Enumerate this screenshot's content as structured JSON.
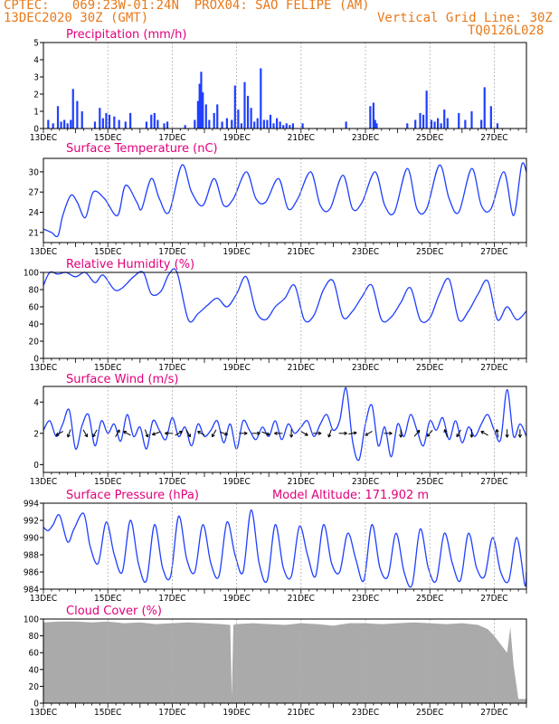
{
  "header": {
    "source": "CPTEC:",
    "coords": "069:23W-01:24N",
    "location": "PROX04: SAO FELIPE (AM)",
    "run": "13DEC2020 30Z (GMT)",
    "grid_note": "Vertical Grid Line: 30Z",
    "code": "TQ0126L028"
  },
  "colors": {
    "series": "#1f3fff",
    "title": "#e0007a",
    "header": "#e8791a",
    "cloud": "#aaaaaa",
    "vline": "#b0b0b0"
  },
  "chart_data": [
    {
      "id": "precip",
      "type": "bar",
      "title": "Precipitation (mm/h)",
      "ylim": [
        0,
        5
      ],
      "yticks": [
        0,
        1,
        2,
        3,
        4,
        5
      ],
      "xticks": [
        "13DEC",
        "15DEC",
        "17DEC",
        "19DEC",
        "21DEC",
        "23DEC",
        "25DEC",
        "27DEC"
      ],
      "x_unit": "days since 13DEC 00Z",
      "xlim": [
        0,
        15
      ],
      "x": [
        0.15,
        0.3,
        0.45,
        0.55,
        0.65,
        0.75,
        0.85,
        0.92,
        1.05,
        1.2,
        1.6,
        1.75,
        1.85,
        1.95,
        2.05,
        2.2,
        2.35,
        2.55,
        2.7,
        3.2,
        3.35,
        3.45,
        3.55,
        3.75,
        3.85,
        4.4,
        4.7,
        4.8,
        4.85,
        4.9,
        4.95,
        5.05,
        5.15,
        5.3,
        5.4,
        5.55,
        5.7,
        5.85,
        5.95,
        6.05,
        6.15,
        6.25,
        6.35,
        6.45,
        6.55,
        6.65,
        6.75,
        6.85,
        6.95,
        7.05,
        7.15,
        7.25,
        7.35,
        7.45,
        7.55,
        7.65,
        7.75,
        8.05,
        9.4,
        10.15,
        10.25,
        10.3,
        10.35,
        11.3,
        11.55,
        11.7,
        11.8,
        11.9,
        12.05,
        12.15,
        12.25,
        12.35,
        12.45,
        12.55,
        12.9,
        13.1,
        13.3,
        13.6,
        13.7,
        13.9,
        14.1
      ],
      "values": [
        0.5,
        0.3,
        1.3,
        0.4,
        0.5,
        0.3,
        0.5,
        2.3,
        1.6,
        1.0,
        0.4,
        1.2,
        0.6,
        0.9,
        0.8,
        0.7,
        0.5,
        0.4,
        0.9,
        0.4,
        0.8,
        0.9,
        0.5,
        0.3,
        0.4,
        0.2,
        0.5,
        1.6,
        2.6,
        3.3,
        2.1,
        1.4,
        0.5,
        0.9,
        1.4,
        0.4,
        0.6,
        0.5,
        2.5,
        1.1,
        0.3,
        2.7,
        1.9,
        1.2,
        0.4,
        0.6,
        3.5,
        0.5,
        0.5,
        0.8,
        0.3,
        0.6,
        0.4,
        0.2,
        0.3,
        0.2,
        0.3,
        0.3,
        0.4,
        1.3,
        1.5,
        0.5,
        0.3,
        0.3,
        0.5,
        0.9,
        0.8,
        2.2,
        0.5,
        0.4,
        0.6,
        0.3,
        1.1,
        0.6,
        0.9,
        0.5,
        1.0,
        0.5,
        2.4,
        1.3,
        0.3
      ]
    },
    {
      "id": "temp",
      "type": "line",
      "title": "Surface Temperature (nC)",
      "ylim": [
        19.5,
        32
      ],
      "yticks": [
        21,
        24,
        27,
        30
      ],
      "xticks": [
        "13DEC",
        "15DEC",
        "17DEC",
        "19DEC",
        "21DEC",
        "23DEC",
        "25DEC",
        "27DEC"
      ],
      "x_unit": "days since 13DEC 00Z",
      "xlim": [
        0,
        15
      ],
      "x": [
        0,
        0.25,
        0.45,
        0.6,
        0.85,
        1.05,
        1.3,
        1.55,
        1.9,
        2.3,
        2.55,
        2.9,
        3.05,
        3.35,
        3.6,
        3.9,
        4.3,
        4.6,
        4.95,
        5.3,
        5.6,
        5.9,
        6.3,
        6.6,
        6.9,
        7.3,
        7.6,
        7.9,
        8.3,
        8.6,
        8.9,
        9.3,
        9.6,
        9.9,
        10.3,
        10.6,
        10.9,
        11.3,
        11.6,
        11.9,
        12.3,
        12.6,
        12.9,
        13.3,
        13.6,
        13.9,
        14.3,
        14.6,
        14.85,
        15
      ],
      "values": [
        21.5,
        21.0,
        20.5,
        23.5,
        26.5,
        25.5,
        23.2,
        27.0,
        26.0,
        23.5,
        28.0,
        25.5,
        24.5,
        29.0,
        26.0,
        24.0,
        31.0,
        27.0,
        25.0,
        29.0,
        25.0,
        26.0,
        30.0,
        26.0,
        25.5,
        29.0,
        24.5,
        26.0,
        30.0,
        25.0,
        24.5,
        29.5,
        24.5,
        25.5,
        30.0,
        25.0,
        24.0,
        30.5,
        24.5,
        24.5,
        31.0,
        26.0,
        24.0,
        30.5,
        25.0,
        24.5,
        30.0,
        23.5,
        31.0,
        30.0
      ]
    },
    {
      "id": "rh",
      "type": "line",
      "title": "Relative Humidity (%)",
      "ylim": [
        0,
        100
      ],
      "yticks": [
        0,
        20,
        40,
        60,
        80,
        100
      ],
      "xticks": [
        "13DEC",
        "15DEC",
        "17DEC",
        "19DEC",
        "21DEC",
        "23DEC",
        "25DEC",
        "27DEC"
      ],
      "x_unit": "days since 13DEC 00Z",
      "xlim": [
        0,
        15
      ],
      "x": [
        0,
        0.2,
        0.45,
        0.7,
        1.0,
        1.3,
        1.6,
        1.85,
        2.2,
        2.45,
        2.8,
        3.1,
        3.35,
        3.65,
        3.9,
        4.15,
        4.5,
        4.8,
        5.1,
        5.4,
        5.7,
        6.0,
        6.3,
        6.6,
        6.9,
        7.2,
        7.5,
        7.8,
        8.1,
        8.4,
        8.7,
        9.0,
        9.3,
        9.6,
        9.9,
        10.2,
        10.5,
        10.8,
        11.1,
        11.4,
        11.7,
        12.0,
        12.3,
        12.6,
        12.9,
        13.2,
        13.5,
        13.8,
        14.1,
        14.4,
        14.7,
        15
      ],
      "values": [
        85,
        100,
        98,
        100,
        95,
        100,
        88,
        97,
        80,
        82,
        95,
        100,
        75,
        78,
        98,
        100,
        45,
        52,
        62,
        70,
        60,
        75,
        95,
        55,
        45,
        60,
        70,
        85,
        45,
        50,
        80,
        90,
        48,
        55,
        72,
        85,
        45,
        48,
        65,
        82,
        45,
        47,
        75,
        92,
        45,
        55,
        75,
        90,
        45,
        60,
        45,
        55
      ]
    },
    {
      "id": "wind",
      "type": "line",
      "title": "Surface Wind (m/s)",
      "ylim": [
        -0.5,
        5
      ],
      "yticks": [
        0,
        2,
        4
      ],
      "xticks": [
        "13DEC",
        "15DEC",
        "17DEC",
        "19DEC",
        "21DEC",
        "23DEC",
        "25DEC",
        "27DEC"
      ],
      "x_unit": "days since 13DEC 00Z",
      "xlim": [
        0,
        15
      ],
      "x": [
        0,
        0.2,
        0.4,
        0.6,
        0.8,
        1.0,
        1.2,
        1.4,
        1.6,
        1.8,
        2.0,
        2.2,
        2.4,
        2.6,
        2.8,
        3.0,
        3.2,
        3.4,
        3.6,
        3.8,
        4.0,
        4.2,
        4.4,
        4.6,
        4.8,
        5.0,
        5.2,
        5.4,
        5.6,
        5.8,
        6.0,
        6.2,
        6.4,
        6.6,
        6.8,
        7.0,
        7.2,
        7.4,
        7.6,
        7.8,
        8.0,
        8.2,
        8.4,
        8.6,
        8.8,
        9.0,
        9.2,
        9.4,
        9.6,
        9.8,
        10.0,
        10.2,
        10.4,
        10.6,
        10.8,
        11.0,
        11.2,
        11.4,
        11.6,
        11.8,
        12.0,
        12.2,
        12.4,
        12.6,
        12.8,
        13.0,
        13.2,
        13.4,
        13.6,
        13.8,
        14.0,
        14.2,
        14.4,
        14.6,
        14.8,
        15
      ],
      "values": [
        2.2,
        2.8,
        1.8,
        2.6,
        3.5,
        1.0,
        2.5,
        3.2,
        1.2,
        2.8,
        2.0,
        2.6,
        1.5,
        3.2,
        1.8,
        2.4,
        1.0,
        2.8,
        2.2,
        1.6,
        3.0,
        1.8,
        2.4,
        1.2,
        2.6,
        1.8,
        2.2,
        2.8,
        1.4,
        2.6,
        1.0,
        2.8,
        2.2,
        1.6,
        2.4,
        1.8,
        2.8,
        1.6,
        2.6,
        2.0,
        2.4,
        2.8,
        1.8,
        2.6,
        3.2,
        2.2,
        2.8,
        4.9,
        1.5,
        0.3,
        2.6,
        3.8,
        1.2,
        2.4,
        0.5,
        2.6,
        1.8,
        3.2,
        2.2,
        1.2,
        2.8,
        2.2,
        3.0,
        1.6,
        2.8,
        1.4,
        2.4,
        1.8,
        2.6,
        3.2,
        2.2,
        1.6,
        4.8,
        1.8,
        2.6,
        1.8
      ],
      "barbs_x": [
        0.5,
        0.8,
        1.3,
        1.6,
        2.3,
        2.6,
        3.2,
        3.5,
        3.9,
        4.2,
        4.5,
        4.9,
        5.3,
        5.6,
        6.2,
        6.6,
        6.9,
        7.3,
        7.7,
        8.1,
        8.5,
        8.9,
        9.3,
        9.6,
        10.1,
        10.7,
        11.1,
        11.6,
        12.0,
        12.5,
        12.9,
        13.3,
        13.7,
        14.1,
        14.4,
        14.8
      ],
      "barbs_dir": [
        240,
        200,
        150,
        210,
        30,
        300,
        160,
        250,
        270,
        60,
        150,
        300,
        210,
        110,
        90,
        90,
        110,
        270,
        180,
        120,
        90,
        200,
        90,
        80,
        240,
        90,
        180,
        40,
        220,
        340,
        210,
        180,
        300,
        350,
        180,
        180
      ]
    },
    {
      "id": "pres",
      "type": "line",
      "title": "Surface Pressure (hPa)",
      "annotation": "Model Altitude: 171.902 m",
      "ylim": [
        984,
        994
      ],
      "yticks": [
        984,
        986,
        988,
        990,
        992,
        994
      ],
      "xticks": [
        "13DEC",
        "15DEC",
        "17DEC",
        "19DEC",
        "21DEC",
        "23DEC",
        "25DEC",
        "27DEC"
      ],
      "x_unit": "days since 13DEC 00Z",
      "xlim": [
        0,
        15
      ],
      "x": [
        0,
        0.15,
        0.3,
        0.5,
        0.75,
        0.95,
        1.25,
        1.45,
        1.7,
        1.95,
        2.2,
        2.45,
        2.7,
        2.95,
        3.2,
        3.45,
        3.7,
        3.95,
        4.2,
        4.45,
        4.7,
        4.95,
        5.2,
        5.45,
        5.7,
        5.95,
        6.2,
        6.45,
        6.7,
        6.95,
        7.2,
        7.45,
        7.7,
        7.95,
        8.2,
        8.45,
        8.7,
        8.95,
        9.2,
        9.45,
        9.7,
        9.95,
        10.2,
        10.45,
        10.7,
        10.95,
        11.2,
        11.45,
        11.7,
        11.95,
        12.2,
        12.45,
        12.7,
        12.95,
        13.2,
        13.45,
        13.7,
        13.95,
        14.2,
        14.45,
        14.7,
        14.95,
        15
      ],
      "values": [
        991.2,
        990.8,
        991.5,
        992.6,
        989.5,
        991.0,
        992.8,
        989.0,
        987.0,
        991.8,
        988.0,
        986.0,
        992.0,
        987.0,
        985.0,
        991.5,
        986.5,
        985.5,
        992.5,
        987.5,
        986.0,
        991.5,
        987.0,
        985.5,
        991.8,
        988.0,
        986.0,
        993.2,
        987.0,
        985.0,
        991.5,
        986.5,
        985.5,
        991.3,
        988.0,
        985.5,
        991.5,
        987.0,
        986.0,
        990.5,
        987.5,
        985.0,
        991.5,
        986.5,
        985.5,
        990.5,
        986.0,
        984.5,
        991.0,
        986.5,
        985.0,
        990.5,
        987.0,
        985.0,
        990.5,
        986.5,
        985.5,
        990.0,
        986.0,
        985.0,
        990.0,
        984.5,
        986.0
      ]
    },
    {
      "id": "cloud",
      "type": "area",
      "title": "Cloud Cover (%)",
      "ylim": [
        0,
        100
      ],
      "yticks": [
        0,
        20,
        40,
        60,
        80,
        100
      ],
      "xticks": [
        "13DEC",
        "15DEC",
        "17DEC",
        "19DEC",
        "21DEC",
        "23DEC",
        "25DEC",
        "27DEC"
      ],
      "x_unit": "days since 13DEC 00Z",
      "xlim": [
        0,
        15
      ],
      "x": [
        0,
        0.5,
        1.0,
        1.5,
        2.0,
        2.5,
        3.0,
        3.5,
        4.0,
        4.5,
        5.0,
        5.5,
        5.8,
        5.85,
        5.9,
        6.0,
        6.5,
        7.0,
        7.5,
        8.0,
        8.5,
        9.0,
        9.5,
        10.0,
        10.5,
        11.0,
        11.5,
        12.0,
        12.5,
        13.0,
        13.5,
        13.8,
        14.0,
        14.2,
        14.4,
        14.5,
        14.6,
        14.75,
        15
      ],
      "values": [
        96,
        97,
        97,
        96,
        97,
        95,
        96,
        94,
        95,
        96,
        95,
        94,
        93,
        8,
        93,
        94,
        95,
        94,
        93,
        95,
        94,
        92,
        95,
        95,
        94,
        95,
        96,
        95,
        94,
        95,
        93,
        88,
        80,
        70,
        60,
        90,
        45,
        5,
        5
      ]
    }
  ]
}
